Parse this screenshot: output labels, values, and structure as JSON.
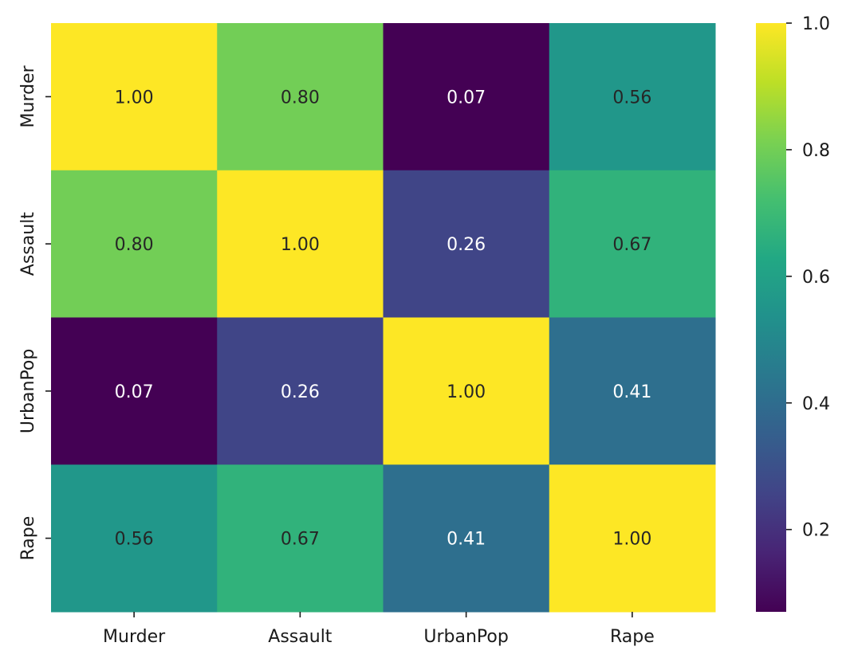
{
  "chart_data": {
    "type": "heatmap",
    "title": "",
    "xlabel": "",
    "ylabel": "",
    "x_categories": [
      "Murder",
      "Assault",
      "UrbanPop",
      "Rape"
    ],
    "y_categories": [
      "Murder",
      "Assault",
      "UrbanPop",
      "Rape"
    ],
    "values": [
      [
        1.0,
        0.8,
        0.07,
        0.56
      ],
      [
        0.8,
        1.0,
        0.26,
        0.67
      ],
      [
        0.07,
        0.26,
        1.0,
        0.41
      ],
      [
        0.56,
        0.67,
        0.41,
        1.0
      ]
    ],
    "cell_labels": [
      [
        "1.00",
        "0.80",
        "0.07",
        "0.56"
      ],
      [
        "0.80",
        "1.00",
        "0.26",
        "0.67"
      ],
      [
        "0.07",
        "0.26",
        "1.00",
        "0.41"
      ],
      [
        "0.56",
        "0.67",
        "0.41",
        "1.00"
      ]
    ],
    "colormap": "viridis",
    "color_range": [
      0.07,
      1.0
    ],
    "colorbar": {
      "ticks": [
        0.2,
        0.4,
        0.6,
        0.8,
        1.0
      ],
      "tick_labels": [
        "0.2",
        "0.4",
        "0.6",
        "0.8",
        "1.0"
      ],
      "placement": "right"
    },
    "grid": false,
    "label_color_dark": "#262626",
    "label_color_light": "#ffffff"
  }
}
